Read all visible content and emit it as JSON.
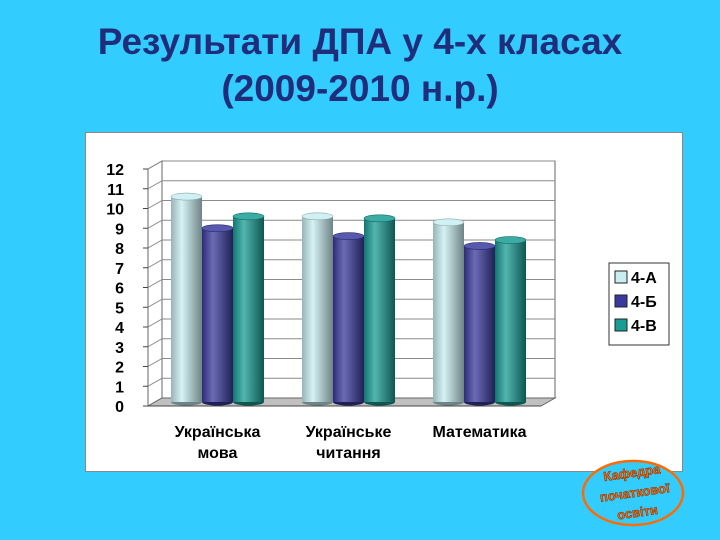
{
  "slide": {
    "title_line1": "Результати ДПА у 4-х класах",
    "title_line2": "(2009-2010 н.р.)"
  },
  "stamp": {
    "lines": [
      "Кафедра",
      "початкової",
      "освіти"
    ],
    "color": "#ff6a00"
  },
  "chart_data": {
    "type": "bar",
    "title": "",
    "xlabel": "",
    "ylabel": "",
    "categories": [
      [
        "Українська",
        "мова"
      ],
      [
        "Українське",
        "читання"
      ],
      [
        "Математика"
      ]
    ],
    "series": [
      {
        "name": "4-А",
        "values": [
          10.4,
          9.4,
          9.1
        ],
        "color": "#c8eef2"
      },
      {
        "name": "4-Б",
        "values": [
          8.8,
          8.4,
          7.9
        ],
        "color": "#3a3a9e"
      },
      {
        "name": "4-В",
        "values": [
          9.4,
          9.3,
          8.2
        ],
        "color": "#199c94"
      }
    ],
    "ylim": [
      0,
      12
    ],
    "yticks": [
      0,
      1,
      2,
      3,
      4,
      5,
      6,
      7,
      8,
      9,
      10,
      11,
      12
    ],
    "grid": true,
    "legend": "right",
    "style": "3d-cylinder"
  }
}
